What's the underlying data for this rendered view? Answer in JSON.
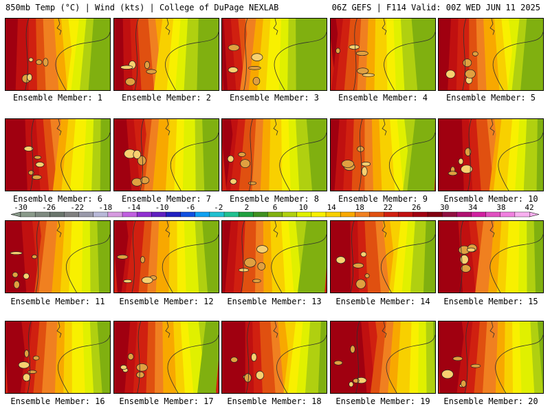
{
  "header": {
    "left": "850mb Temp (°C) | Wind (kts) | College of DuPage NEXLAB",
    "right": "06Z GEFS | F114 Valid: 00Z WED JUN 11 2025"
  },
  "panels": [
    {
      "label": "Ensemble Member: 1",
      "warmth": 0.62
    },
    {
      "label": "Ensemble Member: 2",
      "warmth": 0.55
    },
    {
      "label": "Ensemble Member: 3",
      "warmth": 0.45
    },
    {
      "label": "Ensemble Member: 4",
      "warmth": 0.5
    },
    {
      "label": "Ensemble Member: 5",
      "warmth": 0.6
    },
    {
      "label": "Ensemble Member: 6",
      "warmth": 0.7
    },
    {
      "label": "Ensemble Member: 7",
      "warmth": 0.6
    },
    {
      "label": "Ensemble Member: 8",
      "warmth": 0.55
    },
    {
      "label": "Ensemble Member: 9",
      "warmth": 0.55
    },
    {
      "label": "Ensemble Member: 10",
      "warmth": 0.72
    },
    {
      "label": "Ensemble Member: 11",
      "warmth": 0.66
    },
    {
      "label": "Ensemble Member: 12",
      "warmth": 0.6
    },
    {
      "label": "Ensemble Member: 13",
      "warmth": 0.55
    },
    {
      "label": "Ensemble Member: 14",
      "warmth": 0.68
    },
    {
      "label": "Ensemble Member: 15",
      "warmth": 0.7
    },
    {
      "label": "Ensemble Member: 16",
      "warmth": 0.66
    },
    {
      "label": "Ensemble Member: 17",
      "warmth": 0.65
    },
    {
      "label": "Ensemble Member: 18",
      "warmth": 0.72
    },
    {
      "label": "Ensemble Member: 19",
      "warmth": 0.8
    },
    {
      "label": "Ensemble Member: 20",
      "warmth": 0.74
    }
  ],
  "colorbar": {
    "labels": [
      "-30",
      "-26",
      "-22",
      "-18",
      "-14",
      "-10",
      "-6",
      "-2",
      "2",
      "6",
      "10",
      "14",
      "18",
      "22",
      "26",
      "30",
      "34",
      "38",
      "42"
    ],
    "colors": [
      "#8a9a8a",
      "#7e8a80",
      "#6a756c",
      "#808080",
      "#9a9aaa",
      "#b8b8d8",
      "#d69ae0",
      "#c060e0",
      "#9030d0",
      "#6020c0",
      "#2020c0",
      "#1050e0",
      "#10a0f0",
      "#20c0d0",
      "#20c090",
      "#20a040",
      "#409020",
      "#80b010",
      "#b0d010",
      "#e0f000",
      "#f8f000",
      "#f8d000",
      "#f8a800",
      "#f08020",
      "#e05010",
      "#d02010",
      "#c01010",
      "#a00010",
      "#800010",
      "#901040",
      "#b01070",
      "#d020a0",
      "#e050c0",
      "#f080e0",
      "#f8b0f0"
    ]
  }
}
